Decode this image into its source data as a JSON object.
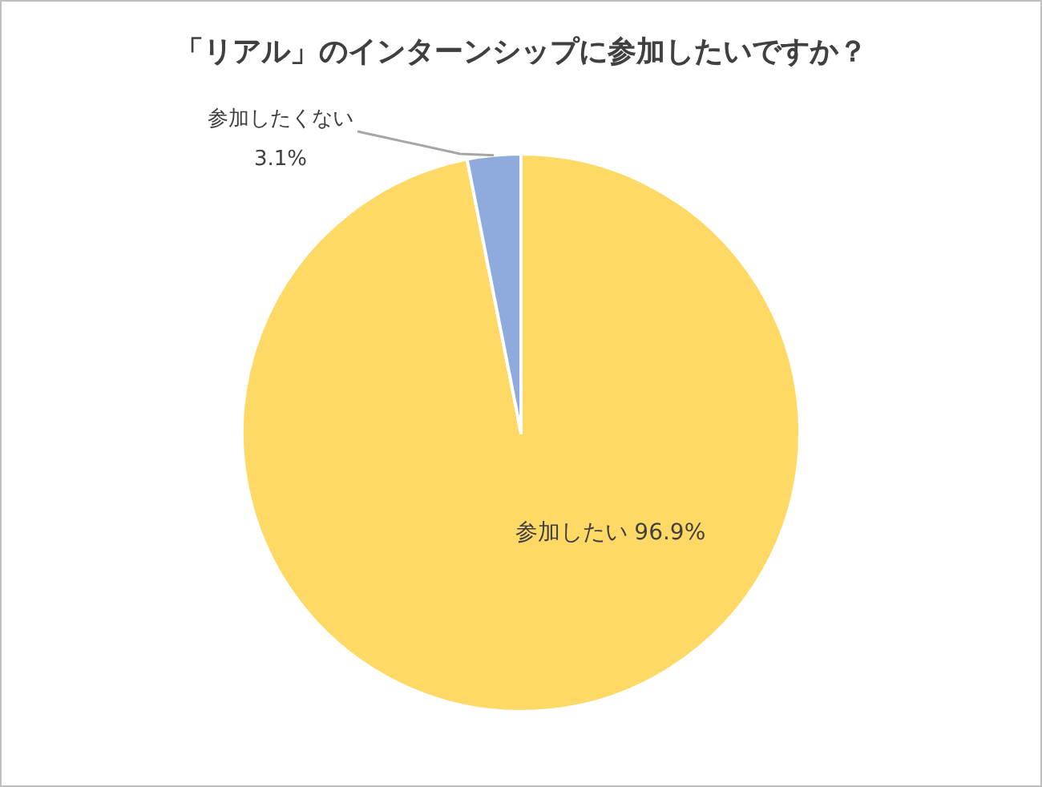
{
  "chart_data": {
    "type": "pie",
    "title": "「リアル」のインターンシップに参加したいですか？",
    "categories": [
      "参加したい",
      "参加したくない"
    ],
    "values": [
      96.9,
      3.1
    ],
    "value_labels": [
      "96.9%",
      "3.1%"
    ],
    "colors": [
      "#ffd966",
      "#8faadc"
    ],
    "legend": false
  }
}
